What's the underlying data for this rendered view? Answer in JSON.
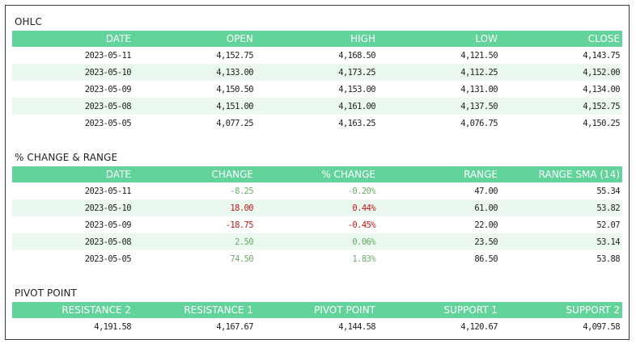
{
  "ohlc": {
    "title": "OHLC",
    "headers": [
      "DATE",
      "OPEN",
      "HIGH",
      "LOW",
      "CLOSE"
    ],
    "rows": [
      {
        "date": "2023-05-11",
        "open": "4,152.75",
        "high": "4,168.50",
        "low": "4,121.50",
        "close": "4,143.75"
      },
      {
        "date": "2023-05-10",
        "open": "4,133.00",
        "high": "4,173.25",
        "low": "4,112.25",
        "close": "4,152.00"
      },
      {
        "date": "2023-05-09",
        "open": "4,150.50",
        "high": "4,153.00",
        "low": "4,131.00",
        "close": "4,134.00"
      },
      {
        "date": "2023-05-08",
        "open": "4,151.00",
        "high": "4,161.00",
        "low": "4,137.50",
        "close": "4,152.75"
      },
      {
        "date": "2023-05-05",
        "open": "4,077.25",
        "high": "4,163.25",
        "low": "4,076.75",
        "close": "4,150.25"
      }
    ]
  },
  "change_range": {
    "title": "% CHANGE & RANGE",
    "headers": [
      "DATE",
      "CHANGE",
      "% CHANGE",
      "RANGE",
      "RANGE SMA (14)"
    ],
    "rows": [
      {
        "date": "2023-05-11",
        "change": "-8.25",
        "pct_change": "-0.20%",
        "range": "47.00",
        "range_sma": "55.34",
        "direction": "down-green"
      },
      {
        "date": "2023-05-10",
        "change": "18.00",
        "pct_change": "0.44%",
        "range": "61.00",
        "range_sma": "53.82",
        "direction": "up-red"
      },
      {
        "date": "2023-05-09",
        "change": "-18.75",
        "pct_change": "-0.45%",
        "range": "22.00",
        "range_sma": "52.07",
        "direction": "down-red"
      },
      {
        "date": "2023-05-08",
        "change": "2.50",
        "pct_change": "0.06%",
        "range": "23.50",
        "range_sma": "53.14",
        "direction": "up-green"
      },
      {
        "date": "2023-05-05",
        "change": "74.50",
        "pct_change": "1.83%",
        "range": "86.50",
        "range_sma": "53.88",
        "direction": "up-green"
      }
    ]
  },
  "pivot": {
    "title": "PIVOT POINT",
    "headers": [
      "RESISTANCE 2",
      "RESISTANCE 1",
      "PIVOT POINT",
      "SUPPORT 1",
      "SUPPORT 2"
    ],
    "values": [
      "4,191.58",
      "4,167.67",
      "4,144.58",
      "4,120.67",
      "4,097.58"
    ]
  },
  "colors": {
    "header_bg": "#62d39b",
    "alt_row_bg": "#eaf8ef",
    "positive": "#6aab6a",
    "negative": "#c21818"
  }
}
